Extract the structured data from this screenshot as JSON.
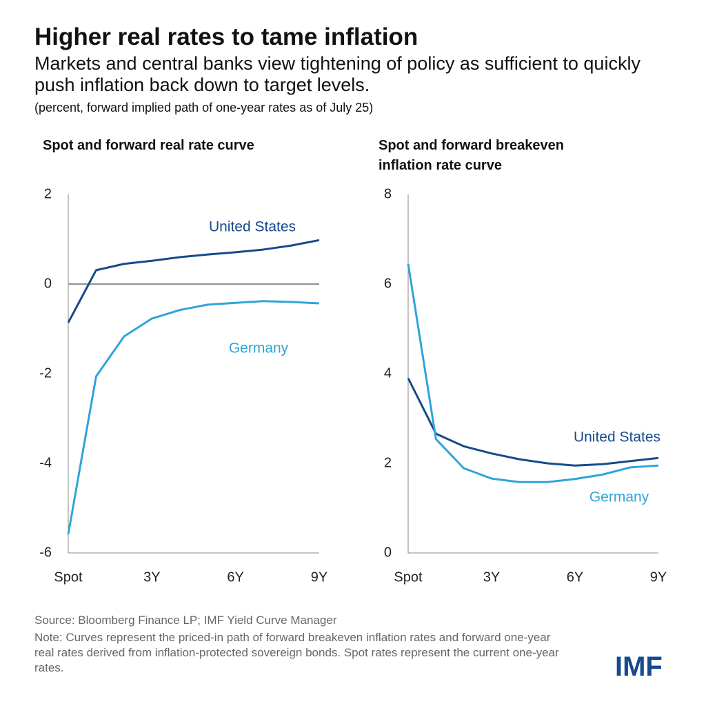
{
  "header": {
    "title": "Higher real rates to tame inflation",
    "subtitle": "Markets and central banks view tightening of policy as sufficient to quickly push inflation back down to target levels.",
    "note": "(percent, forward implied path of one-year rates as of July 25)"
  },
  "chart_data": [
    {
      "type": "line",
      "title": "Spot and forward real rate curve",
      "categories": [
        "Spot",
        null,
        null,
        "3Y",
        null,
        null,
        "6Y",
        null,
        null,
        "9Y"
      ],
      "series": [
        {
          "name": "United States",
          "color": "#164a8a",
          "values": [
            -0.86,
            0.31,
            0.45,
            0.52,
            0.6,
            0.66,
            0.71,
            0.77,
            0.86,
            0.98
          ]
        },
        {
          "name": "Germany",
          "color": "#2fa4da",
          "values": [
            -5.58,
            -2.06,
            -1.17,
            -0.77,
            -0.58,
            -0.46,
            -0.42,
            -0.38,
            -0.4,
            -0.43
          ]
        }
      ],
      "ylim": [
        -6,
        2
      ],
      "yticks": [
        2,
        0,
        -2,
        -4,
        -6
      ]
    },
    {
      "type": "line",
      "title": "Spot and forward breakeven inflation rate curve",
      "categories": [
        "Spot",
        null,
        null,
        "3Y",
        null,
        null,
        "6Y",
        null,
        null,
        "9Y"
      ],
      "series": [
        {
          "name": "United States",
          "color": "#164a8a",
          "values": [
            3.9,
            2.66,
            2.38,
            2.22,
            2.09,
            2.0,
            1.95,
            1.98,
            2.05,
            2.12
          ]
        },
        {
          "name": "Germany",
          "color": "#2fa4da",
          "values": [
            6.45,
            2.54,
            1.89,
            1.66,
            1.58,
            1.58,
            1.65,
            1.75,
            1.91,
            1.95
          ]
        }
      ],
      "ylim": [
        0,
        8
      ],
      "yticks": [
        0,
        2,
        4,
        6,
        8
      ]
    }
  ],
  "footer": {
    "source": "Source: Bloomberg Finance LP; IMF Yield Curve Manager",
    "note": "Note: Curves represent the priced-in path of forward breakeven inflation rates and forward one-year real rates derived from inflation-protected sovereign bonds. Spot rates represent the current one-year rates.",
    "logo": "IMF"
  }
}
